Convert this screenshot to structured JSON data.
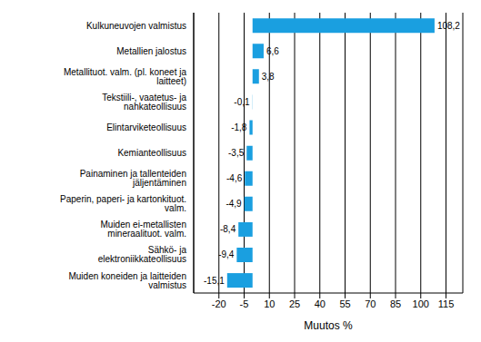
{
  "chart_data": {
    "type": "bar",
    "orientation": "horizontal",
    "categories": [
      "Kulkuneuvojen valmistus",
      "Metallien jalostus",
      "Metallituot. valm. (pl. koneet ja laitteet)",
      "Tekstiili-, vaatetus- ja nahkateollisuus",
      "Elintarviketeollisuus",
      "Kemianteollisuus",
      "Painaminen ja tallenteiden jäljentäminen",
      "Paperin, paperi- ja kartonkituot. valm.",
      "Muiden ei-metallisten mineraalituot. valm.",
      "Sähkö- ja elektroniikkateollisuus",
      "Muiden koneiden ja laitteiden valmistus"
    ],
    "values": [
      108.2,
      6.6,
      3.8,
      -0.1,
      -1.8,
      -3.5,
      -4.6,
      -4.9,
      -8.4,
      -9.4,
      -15.1
    ],
    "value_labels": [
      "108,2",
      "6,6",
      "3,8",
      "-0,1",
      "-1,8",
      "-3,5",
      "-4,6",
      "-4,9",
      "-8,4",
      "-9,4",
      "-15,1"
    ],
    "data_labels": true,
    "color": "#1a9fe0",
    "xlim": [
      -35,
      125
    ],
    "xticks": [
      -20,
      -5,
      10,
      25,
      40,
      55,
      70,
      85,
      100,
      115
    ],
    "x_label": "Muutos %",
    "grid": true
  }
}
